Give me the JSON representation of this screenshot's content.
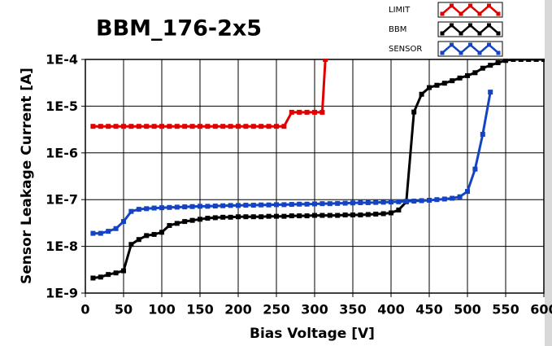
{
  "chart_data": {
    "type": "line",
    "title": "BBM_176-2x5",
    "x_label": "Bias Voltage [V]",
    "y_label": "Sensor Leakage Current [A]",
    "log_y": true,
    "grid": true,
    "legend": "top-right",
    "xlim": [
      0,
      600
    ],
    "xticks": [
      0,
      50,
      100,
      150,
      200,
      250,
      300,
      350,
      400,
      450,
      500,
      550,
      600
    ],
    "ylim": [
      1e-09,
      0.0001
    ],
    "yticks": [
      {
        "value": 1e-09,
        "label": "1E-9"
      },
      {
        "value": 1e-08,
        "label": "1E-8"
      },
      {
        "value": 1e-07,
        "label": "1E-7"
      },
      {
        "value": 1e-06,
        "label": "1E-6"
      },
      {
        "value": 1e-05,
        "label": "1E-5"
      },
      {
        "value": 0.0001,
        "label": "1E-4"
      }
    ],
    "series": [
      {
        "name": "LIMIT",
        "color": "#e00000",
        "x": [
          10,
          20,
          30,
          40,
          50,
          60,
          70,
          80,
          90,
          100,
          110,
          120,
          130,
          140,
          150,
          160,
          170,
          180,
          190,
          200,
          210,
          220,
          230,
          240,
          250,
          260,
          270,
          280,
          290,
          300,
          310,
          314
        ],
        "values": [
          3.7e-06,
          3.7e-06,
          3.7e-06,
          3.7e-06,
          3.7e-06,
          3.7e-06,
          3.7e-06,
          3.7e-06,
          3.7e-06,
          3.7e-06,
          3.7e-06,
          3.7e-06,
          3.7e-06,
          3.7e-06,
          3.7e-06,
          3.7e-06,
          3.7e-06,
          3.7e-06,
          3.7e-06,
          3.7e-06,
          3.7e-06,
          3.7e-06,
          3.7e-06,
          3.7e-06,
          3.7e-06,
          3.7e-06,
          7.4e-06,
          7.4e-06,
          7.4e-06,
          7.4e-06,
          7.4e-06,
          0.0001
        ]
      },
      {
        "name": "BBM",
        "color": "#000000",
        "x": [
          10,
          20,
          30,
          40,
          50,
          60,
          70,
          80,
          90,
          100,
          110,
          120,
          130,
          140,
          150,
          160,
          170,
          180,
          190,
          200,
          210,
          220,
          230,
          240,
          250,
          260,
          270,
          280,
          290,
          300,
          310,
          320,
          330,
          340,
          350,
          360,
          370,
          380,
          390,
          400,
          410,
          420,
          430,
          440,
          450,
          460,
          470,
          480,
          490,
          500,
          510,
          520,
          530,
          540,
          550,
          560,
          570,
          580,
          590,
          600
        ],
        "values": [
          2.1e-09,
          2.2e-09,
          2.5e-09,
          2.7e-09,
          3e-09,
          1.1e-08,
          1.4e-08,
          1.7e-08,
          1.8e-08,
          2e-08,
          2.8e-08,
          3.1e-08,
          3.4e-08,
          3.6e-08,
          3.8e-08,
          4e-08,
          4.1e-08,
          4.2e-08,
          4.2e-08,
          4.3e-08,
          4.3e-08,
          4.3e-08,
          4.3e-08,
          4.4e-08,
          4.4e-08,
          4.4e-08,
          4.5e-08,
          4.5e-08,
          4.5e-08,
          4.6e-08,
          4.6e-08,
          4.6e-08,
          4.6e-08,
          4.7e-08,
          4.7e-08,
          4.7e-08,
          4.8e-08,
          4.9e-08,
          5e-08,
          5.2e-08,
          6e-08,
          9e-08,
          7.5e-06,
          1.8e-05,
          2.5e-05,
          2.8e-05,
          3.1e-05,
          3.5e-05,
          4e-05,
          4.5e-05,
          5.2e-05,
          6.5e-05,
          7.5e-05,
          8.5e-05,
          9.5e-05,
          0.0001,
          0.0001,
          0.0001,
          0.0001,
          0.0001
        ]
      },
      {
        "name": "SENSOR",
        "color": "#1444c4",
        "x": [
          10,
          20,
          30,
          40,
          50,
          60,
          70,
          80,
          90,
          100,
          110,
          120,
          130,
          140,
          150,
          160,
          170,
          180,
          190,
          200,
          210,
          220,
          230,
          240,
          250,
          260,
          270,
          280,
          290,
          300,
          310,
          320,
          330,
          340,
          350,
          360,
          370,
          380,
          390,
          400,
          410,
          420,
          430,
          440,
          450,
          460,
          470,
          480,
          490,
          500,
          510,
          520,
          530
        ],
        "values": [
          1.9e-08,
          1.9e-08,
          2.1e-08,
          2.4e-08,
          3.4e-08,
          5.6e-08,
          6.2e-08,
          6.4e-08,
          6.6e-08,
          6.7e-08,
          6.8e-08,
          6.9e-08,
          7e-08,
          7.1e-08,
          7.2e-08,
          7.2e-08,
          7.3e-08,
          7.4e-08,
          7.5e-08,
          7.5e-08,
          7.6e-08,
          7.6e-08,
          7.7e-08,
          7.7e-08,
          7.8e-08,
          7.8e-08,
          7.9e-08,
          8e-08,
          8e-08,
          8.1e-08,
          8.2e-08,
          8.2e-08,
          8.3e-08,
          8.4e-08,
          8.5e-08,
          8.6e-08,
          8.6e-08,
          8.7e-08,
          8.8e-08,
          8.9e-08,
          9e-08,
          9.2e-08,
          9.3e-08,
          9.5e-08,
          9.7e-08,
          1e-07,
          1.03e-07,
          1.07e-07,
          1.15e-07,
          1.5e-07,
          4.5e-07,
          2.5e-06,
          2e-05
        ]
      }
    ]
  }
}
